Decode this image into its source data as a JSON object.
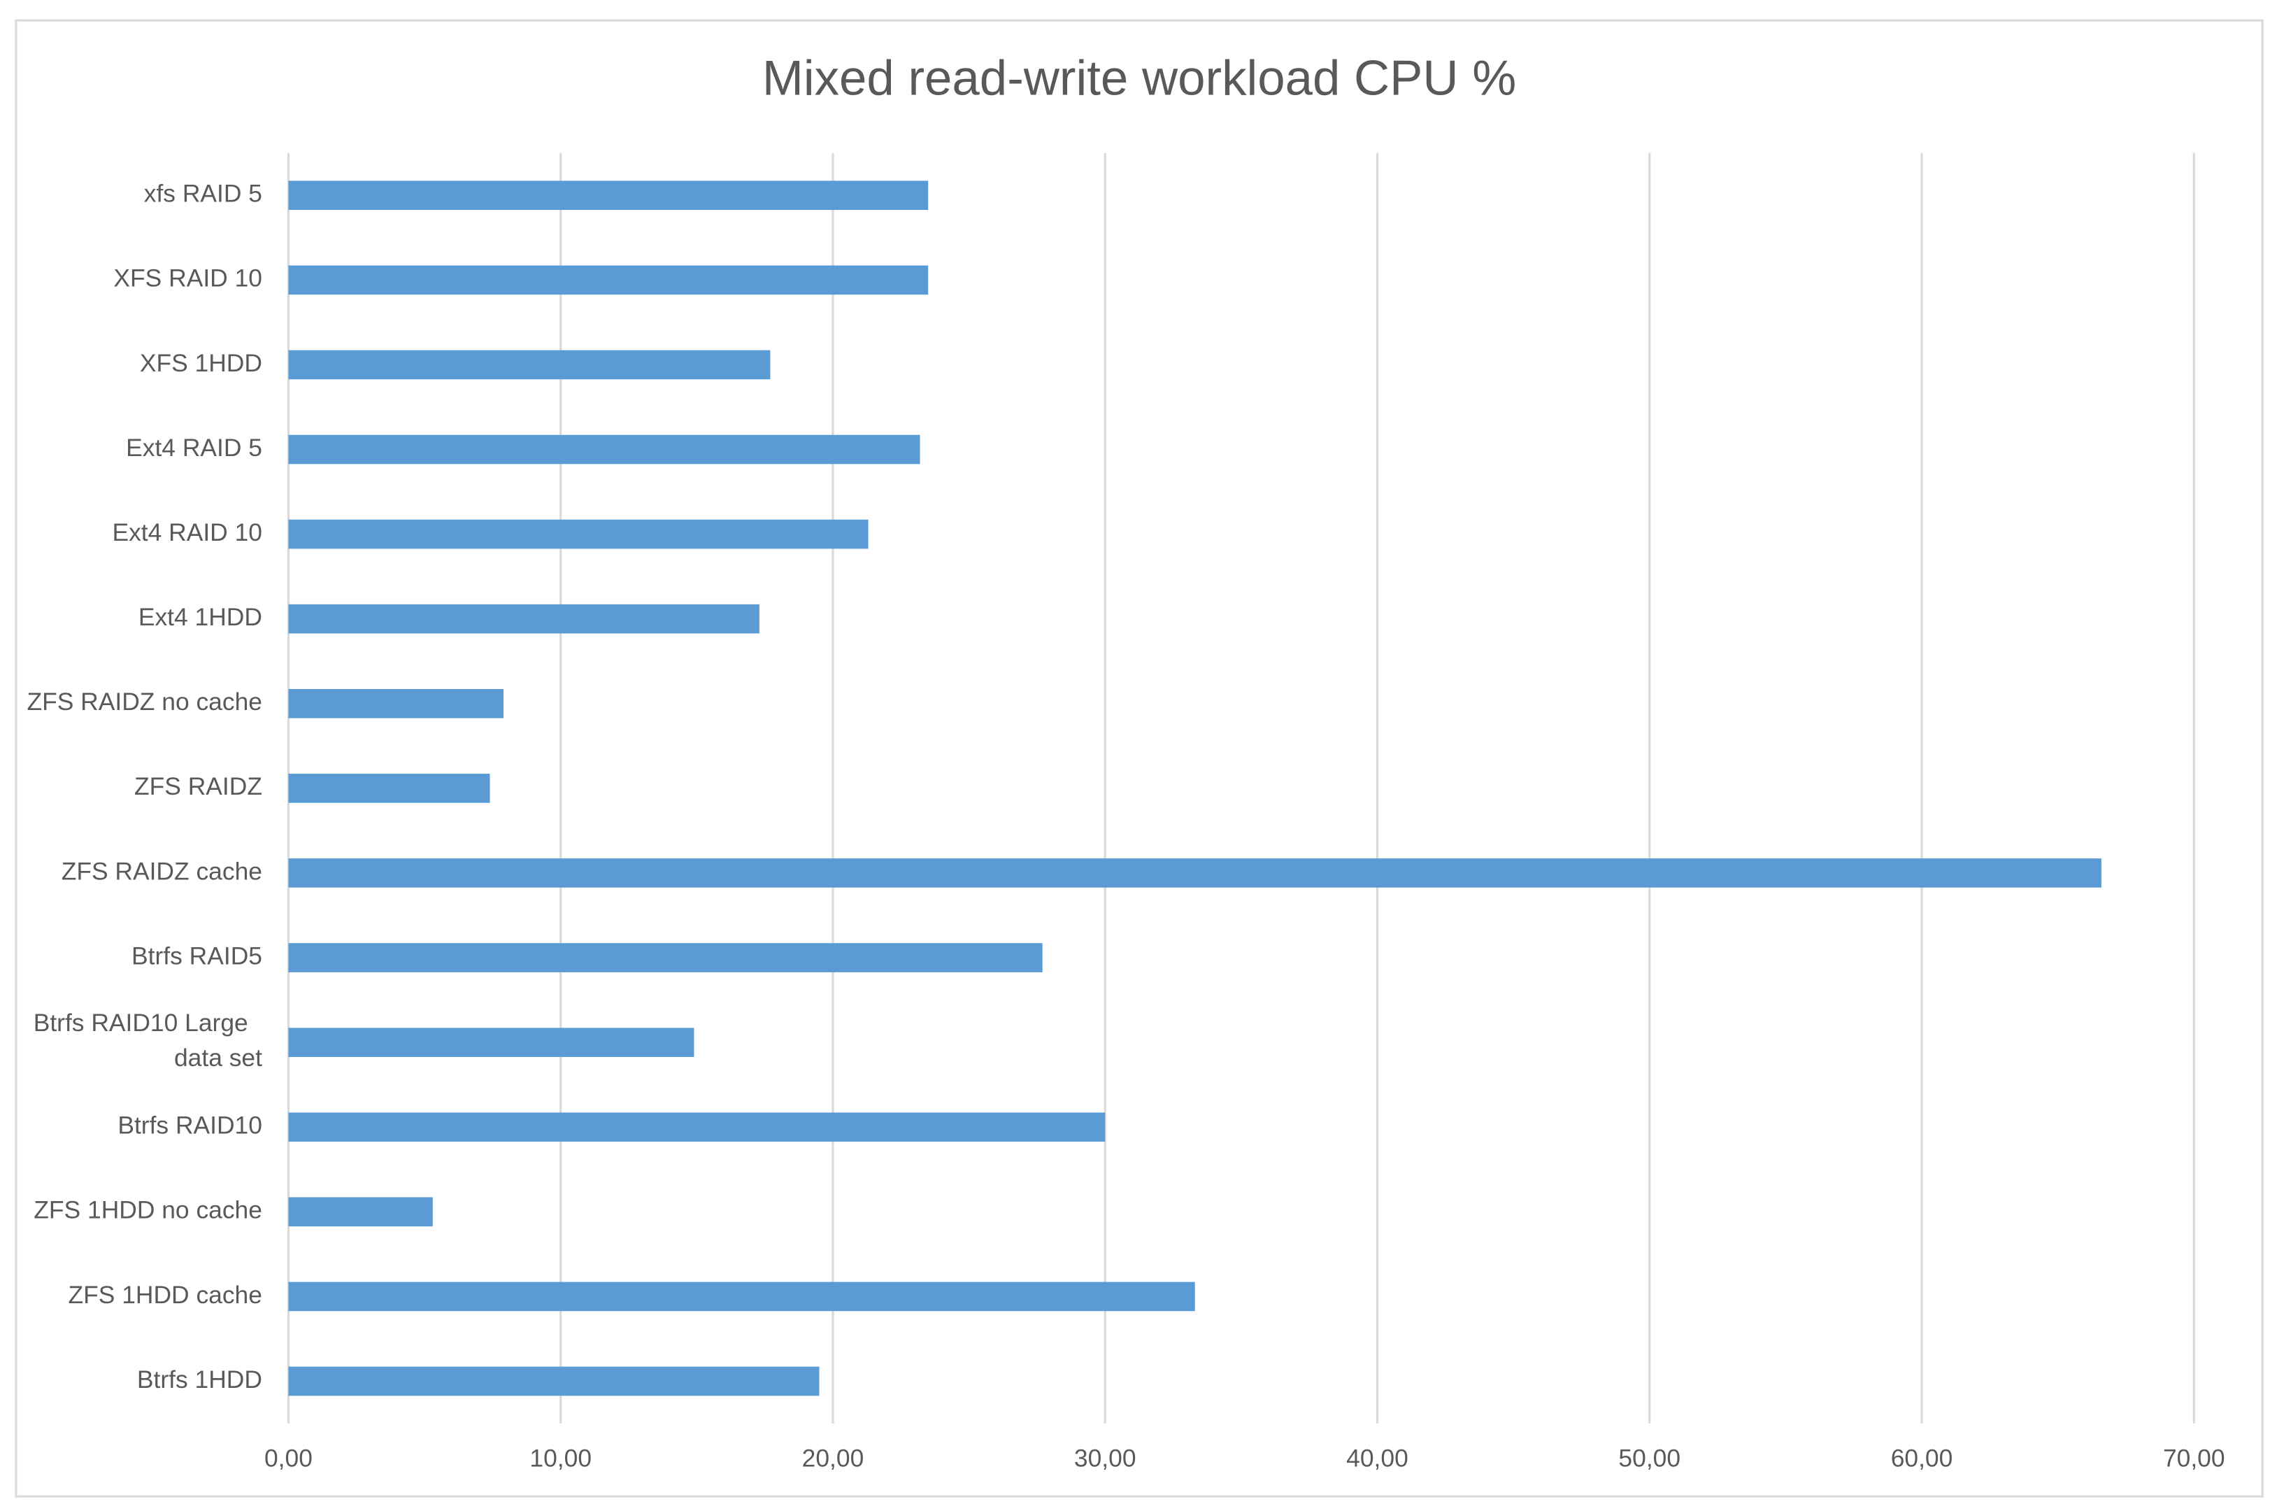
{
  "chart_data": {
    "type": "bar",
    "orientation": "horizontal",
    "title": "Mixed read-write workload CPU %",
    "categories": [
      "xfs  RAID 5",
      "XFS  RAID 10",
      "XFS 1HDD",
      "Ext4  RAID 5",
      "Ext4  RAID 10",
      "Ext4 1HDD",
      "ZFS RAIDZ no cache",
      "ZFS RAIDZ",
      "ZFS RAIDZ cache",
      "Btrfs RAID5",
      "Btrfs RAID10 Large data set",
      "Btrfs RAID10",
      "ZFS 1HDD no cache",
      "ZFS 1HDD cache",
      "Btrfs 1HDD"
    ],
    "values": [
      23.5,
      23.5,
      17.7,
      23.2,
      21.3,
      17.3,
      7.9,
      7.4,
      66.6,
      27.7,
      14.9,
      30.0,
      5.3,
      33.3,
      19.5
    ],
    "color": "#5b9bd5",
    "xlim": [
      0,
      70
    ],
    "xticks": [
      {
        "value": 0,
        "label": "0,00"
      },
      {
        "value": 10,
        "label": "10,00"
      },
      {
        "value": 20,
        "label": "20,00"
      },
      {
        "value": 30,
        "label": "30,00"
      },
      {
        "value": 40,
        "label": "40,00"
      },
      {
        "value": 50,
        "label": "50,00"
      },
      {
        "value": 60,
        "label": "60,00"
      },
      {
        "value": 70,
        "label": "70,00"
      }
    ],
    "grid": true
  }
}
